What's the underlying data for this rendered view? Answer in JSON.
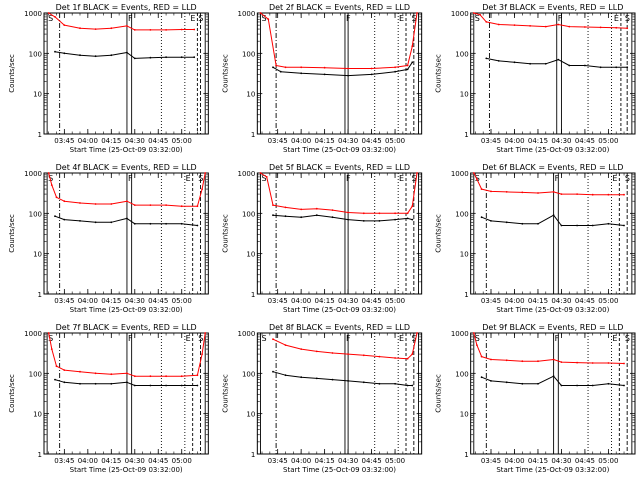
{
  "shared": {
    "ylabel": "Counts/sec",
    "xlabel": "Start Time (25-Oct-09 03:32:00)",
    "x_ticks": [
      "03:45",
      "04:00",
      "04:15",
      "04:30",
      "04:45",
      "05:00"
    ],
    "y_ticks": [
      "1",
      "10",
      "100",
      "1000"
    ],
    "marker_labels": [
      "S",
      "F",
      "E",
      "S"
    ],
    "colors": {
      "events": "#000000",
      "lld": "#ff0000",
      "axes": "#000000"
    }
  },
  "chart_data": [
    {
      "type": "line",
      "title": "Det 1f BLACK = Events, RED = LLD",
      "xlabel": "Start Time (25-Oct-09 03:32:00)",
      "ylabel": "Counts/sec",
      "xlim": [
        "03:32",
        "05:17"
      ],
      "ylim": [
        1,
        1000
      ],
      "yscale": "log",
      "series": [
        {
          "name": "Events",
          "color": "#000000",
          "x": [
            "03:39",
            "03:45",
            "03:55",
            "04:05",
            "04:15",
            "04:25",
            "04:30",
            "04:40",
            "04:50",
            "05:00",
            "05:08"
          ],
          "y": [
            110,
            100,
            90,
            85,
            90,
            105,
            75,
            78,
            80,
            80,
            80
          ]
        },
        {
          "name": "LLD",
          "color": "#ff0000",
          "x": [
            "03:35",
            "03:39",
            "03:45",
            "03:55",
            "04:05",
            "04:15",
            "04:25",
            "04:30",
            "04:40",
            "04:50",
            "05:00",
            "05:08"
          ],
          "y": [
            1000,
            800,
            500,
            420,
            400,
            420,
            480,
            380,
            380,
            380,
            390,
            390
          ]
        }
      ],
      "markers": {
        "S": [
          "03:34",
          "05:15"
        ],
        "F": [
          "04:25",
          "04:28"
        ],
        "E": "05:10",
        "dashdot": "03:42",
        "dotted": [
          "04:47",
          "05:02"
        ],
        "dashed": "05:12"
      }
    },
    {
      "type": "line",
      "title": "Det 2f BLACK = Events, RED = LLD",
      "xlabel": "Start Time (25-Oct-09 03:32:00)",
      "ylabel": "Counts/sec",
      "xlim": [
        "03:32",
        "05:17"
      ],
      "ylim": [
        1,
        1000
      ],
      "yscale": "log",
      "series": [
        {
          "name": "Events",
          "color": "#000000",
          "x": [
            "03:42",
            "03:47",
            "04:00",
            "04:15",
            "04:30",
            "04:45",
            "05:00",
            "05:08",
            "05:11"
          ],
          "y": [
            45,
            35,
            32,
            30,
            28,
            30,
            35,
            40,
            60
          ]
        },
        {
          "name": "LLD",
          "color": "#ff0000",
          "x": [
            "03:34",
            "03:39",
            "03:44",
            "03:50",
            "04:00",
            "04:15",
            "04:30",
            "04:45",
            "05:00",
            "05:08",
            "05:11",
            "05:14"
          ],
          "y": [
            1000,
            700,
            50,
            45,
            45,
            44,
            42,
            42,
            45,
            50,
            150,
            1000
          ]
        }
      ],
      "markers": {
        "S": [
          "03:34",
          "05:15"
        ],
        "F": [
          "04:28",
          "04:30"
        ],
        "E": "05:07",
        "dashdot": "03:44",
        "dotted": [
          "04:47",
          "05:02"
        ],
        "dashed": "05:12"
      }
    },
    {
      "type": "line",
      "title": "Det 3f BLACK = Events, RED = LLD",
      "xlabel": "Start Time (25-Oct-09 03:32:00)",
      "ylabel": "Counts/sec",
      "xlim": [
        "03:32",
        "05:17"
      ],
      "ylim": [
        1,
        1000
      ],
      "yscale": "log",
      "series": [
        {
          "name": "Events",
          "color": "#000000",
          "x": [
            "03:42",
            "03:50",
            "04:00",
            "04:10",
            "04:20",
            "04:28",
            "04:35",
            "04:45",
            "04:55",
            "05:05",
            "05:12"
          ],
          "y": [
            75,
            65,
            60,
            55,
            55,
            70,
            50,
            50,
            45,
            45,
            45
          ]
        },
        {
          "name": "LLD",
          "color": "#ff0000",
          "x": [
            "03:34",
            "03:38",
            "03:42",
            "03:50",
            "04:00",
            "04:10",
            "04:20",
            "04:28",
            "04:35",
            "04:45",
            "04:55",
            "05:05",
            "05:12"
          ],
          "y": [
            1000,
            900,
            600,
            520,
            500,
            480,
            460,
            520,
            460,
            450,
            440,
            430,
            420
          ]
        }
      ],
      "markers": {
        "S": [
          "03:34",
          "05:15"
        ],
        "F": [
          "04:27",
          "04:30"
        ],
        "E": "05:08",
        "dashdot": "03:44",
        "dotted": [
          "04:47",
          "05:02"
        ],
        "dashed": "05:12"
      }
    },
    {
      "type": "line",
      "title": "Det 4f BLACK = Events, RED = LLD",
      "xlabel": "Start Time (25-Oct-09 03:32:00)",
      "ylabel": "Counts/sec",
      "xlim": [
        "03:32",
        "05:17"
      ],
      "ylim": [
        1,
        1000
      ],
      "yscale": "log",
      "series": [
        {
          "name": "Events",
          "color": "#000000",
          "x": [
            "03:39",
            "03:45",
            "03:55",
            "04:05",
            "04:15",
            "04:25",
            "04:30",
            "04:40",
            "04:50",
            "05:00",
            "05:10"
          ],
          "y": [
            85,
            70,
            65,
            60,
            60,
            75,
            55,
            55,
            55,
            55,
            50
          ]
        },
        {
          "name": "LLD",
          "color": "#ff0000",
          "x": [
            "03:35",
            "03:37",
            "03:40",
            "03:45",
            "03:55",
            "04:05",
            "04:15",
            "04:25",
            "04:30",
            "04:40",
            "04:50",
            "05:00",
            "05:10",
            "05:13",
            "05:15"
          ],
          "y": [
            1000,
            500,
            250,
            200,
            180,
            170,
            170,
            200,
            160,
            160,
            160,
            150,
            150,
            400,
            1000
          ]
        }
      ],
      "markers": {
        "S": [
          "03:34",
          "05:15"
        ],
        "F": [
          "04:25",
          "04:28"
        ],
        "E": "05:07",
        "dashdot": "03:42",
        "dotted": [
          "04:47",
          "05:02"
        ],
        "dashed": "05:12"
      }
    },
    {
      "type": "line",
      "title": "Det 5f BLACK = Events, RED = LLD",
      "xlabel": "Start Time (25-Oct-09 03:32:00)",
      "ylabel": "Counts/sec",
      "xlim": [
        "03:32",
        "05:17"
      ],
      "ylim": [
        1,
        1000
      ],
      "yscale": "log",
      "series": [
        {
          "name": "Events",
          "color": "#000000",
          "x": [
            "03:42",
            "03:50",
            "04:00",
            "04:10",
            "04:20",
            "04:30",
            "04:40",
            "04:50",
            "05:00",
            "05:08",
            "05:11"
          ],
          "y": [
            90,
            85,
            80,
            90,
            80,
            70,
            65,
            65,
            70,
            75,
            70
          ]
        },
        {
          "name": "LLD",
          "color": "#ff0000",
          "x": [
            "03:34",
            "03:38",
            "03:42",
            "03:50",
            "04:00",
            "04:10",
            "04:20",
            "04:30",
            "04:40",
            "04:50",
            "05:00",
            "05:08",
            "05:11",
            "05:14"
          ],
          "y": [
            1000,
            800,
            160,
            140,
            125,
            130,
            120,
            105,
            100,
            100,
            100,
            100,
            150,
            1000
          ]
        }
      ],
      "markers": {
        "S": [
          "03:34",
          "05:15"
        ],
        "F": [
          "04:28",
          "04:30"
        ],
        "E": "05:07",
        "dashdot": "03:44",
        "dotted": [
          "04:47",
          "05:02"
        ],
        "dashed": "05:12"
      }
    },
    {
      "type": "line",
      "title": "Det 6f BLACK = Events, RED = LLD",
      "xlabel": "Start Time (25-Oct-09 03:32:00)",
      "ylabel": "Counts/sec",
      "xlim": [
        "03:32",
        "05:17"
      ],
      "ylim": [
        1,
        1000
      ],
      "yscale": "log",
      "series": [
        {
          "name": "Events",
          "color": "#000000",
          "x": [
            "03:39",
            "03:45",
            "03:55",
            "04:05",
            "04:15",
            "04:25",
            "04:30",
            "04:40",
            "04:50",
            "05:00",
            "05:10"
          ],
          "y": [
            80,
            65,
            60,
            55,
            55,
            90,
            50,
            50,
            50,
            55,
            50
          ]
        },
        {
          "name": "LLD",
          "color": "#ff0000",
          "x": [
            "03:34",
            "03:36",
            "03:39",
            "03:45",
            "03:55",
            "04:05",
            "04:15",
            "04:25",
            "04:30",
            "04:40",
            "04:50",
            "05:00",
            "05:10"
          ],
          "y": [
            1000,
            700,
            400,
            350,
            340,
            330,
            320,
            340,
            300,
            300,
            290,
            290,
            290
          ]
        }
      ],
      "markers": {
        "S": [
          "03:34",
          "05:15"
        ],
        "F": [
          "04:25",
          "04:28"
        ],
        "E": "05:07",
        "dashdot": "03:42",
        "dotted": [
          "04:47",
          "05:02"
        ],
        "dashed": "05:12"
      }
    },
    {
      "type": "line",
      "title": "Det 7f BLACK = Events, RED = LLD",
      "xlabel": "Start Time (25-Oct-09 03:32:00)",
      "ylabel": "Counts/sec",
      "xlim": [
        "03:32",
        "05:17"
      ],
      "ylim": [
        1,
        1000
      ],
      "yscale": "log",
      "series": [
        {
          "name": "Events",
          "color": "#000000",
          "x": [
            "03:39",
            "03:45",
            "03:55",
            "04:05",
            "04:15",
            "04:25",
            "04:30",
            "04:40",
            "04:50",
            "05:00",
            "05:10"
          ],
          "y": [
            70,
            60,
            55,
            55,
            55,
            60,
            50,
            50,
            50,
            50,
            50
          ]
        },
        {
          "name": "LLD",
          "color": "#ff0000",
          "x": [
            "03:35",
            "03:37",
            "03:40",
            "03:45",
            "03:55",
            "04:05",
            "04:15",
            "04:25",
            "04:30",
            "04:40",
            "04:50",
            "05:00",
            "05:10",
            "05:13",
            "05:15"
          ],
          "y": [
            1000,
            400,
            150,
            120,
            110,
            100,
            95,
            100,
            85,
            85,
            85,
            85,
            90,
            300,
            1000
          ]
        }
      ],
      "markers": {
        "S": [
          "03:34",
          "05:15"
        ],
        "F": [
          "04:25",
          "04:28"
        ],
        "E": "05:07",
        "dashdot": "03:42",
        "dotted": [
          "04:47",
          "05:02"
        ],
        "dashed": "05:12"
      }
    },
    {
      "type": "line",
      "title": "Det 8f BLACK = Events, RED = LLD",
      "xlabel": "Start Time (25-Oct-09 03:32:00)",
      "ylabel": "Counts/sec",
      "xlim": [
        "03:32",
        "05:17"
      ],
      "ylim": [
        1,
        1000
      ],
      "yscale": "log",
      "series": [
        {
          "name": "Events",
          "color": "#000000",
          "x": [
            "03:42",
            "03:50",
            "04:00",
            "04:10",
            "04:20",
            "04:30",
            "04:40",
            "04:50",
            "05:00",
            "05:08",
            "05:11"
          ],
          "y": [
            110,
            90,
            80,
            75,
            70,
            65,
            60,
            55,
            55,
            50,
            50
          ]
        },
        {
          "name": "LLD",
          "color": "#ff0000",
          "x": [
            "03:42",
            "03:50",
            "04:00",
            "04:10",
            "04:20",
            "04:30",
            "04:40",
            "04:50",
            "05:00",
            "05:08",
            "05:11",
            "05:14"
          ],
          "y": [
            700,
            500,
            400,
            350,
            320,
            300,
            280,
            260,
            240,
            230,
            300,
            1000
          ]
        }
      ],
      "markers": {
        "S": [
          "03:34",
          "05:15"
        ],
        "F": [
          "04:28",
          "04:30"
        ],
        "E": "05:07",
        "dashdot": "03:44",
        "dotted": [
          "04:47",
          "05:02"
        ],
        "dashed": "05:12"
      }
    },
    {
      "type": "line",
      "title": "Det 9f BLACK = Events, RED = LLD",
      "xlabel": "Start Time (25-Oct-09 03:32:00)",
      "ylabel": "Counts/sec",
      "xlim": [
        "03:32",
        "05:17"
      ],
      "ylim": [
        1,
        1000
      ],
      "yscale": "log",
      "series": [
        {
          "name": "Events",
          "color": "#000000",
          "x": [
            "03:39",
            "03:45",
            "03:55",
            "04:05",
            "04:15",
            "04:25",
            "04:30",
            "04:40",
            "04:50",
            "05:00",
            "05:10"
          ],
          "y": [
            80,
            65,
            60,
            55,
            55,
            85,
            50,
            50,
            50,
            55,
            50
          ]
        },
        {
          "name": "LLD",
          "color": "#ff0000",
          "x": [
            "03:34",
            "03:36",
            "03:39",
            "03:45",
            "03:55",
            "04:05",
            "04:15",
            "04:25",
            "04:30",
            "04:40",
            "04:50",
            "05:00",
            "05:10"
          ],
          "y": [
            1000,
            500,
            260,
            220,
            210,
            200,
            200,
            220,
            190,
            185,
            180,
            180,
            175
          ]
        }
      ],
      "markers": {
        "S": [
          "03:34",
          "05:15"
        ],
        "F": [
          "04:25",
          "04:28"
        ],
        "E": "05:07",
        "dashdot": "03:42",
        "dotted": [
          "04:47",
          "05:02"
        ],
        "dashed": "05:12"
      }
    }
  ]
}
